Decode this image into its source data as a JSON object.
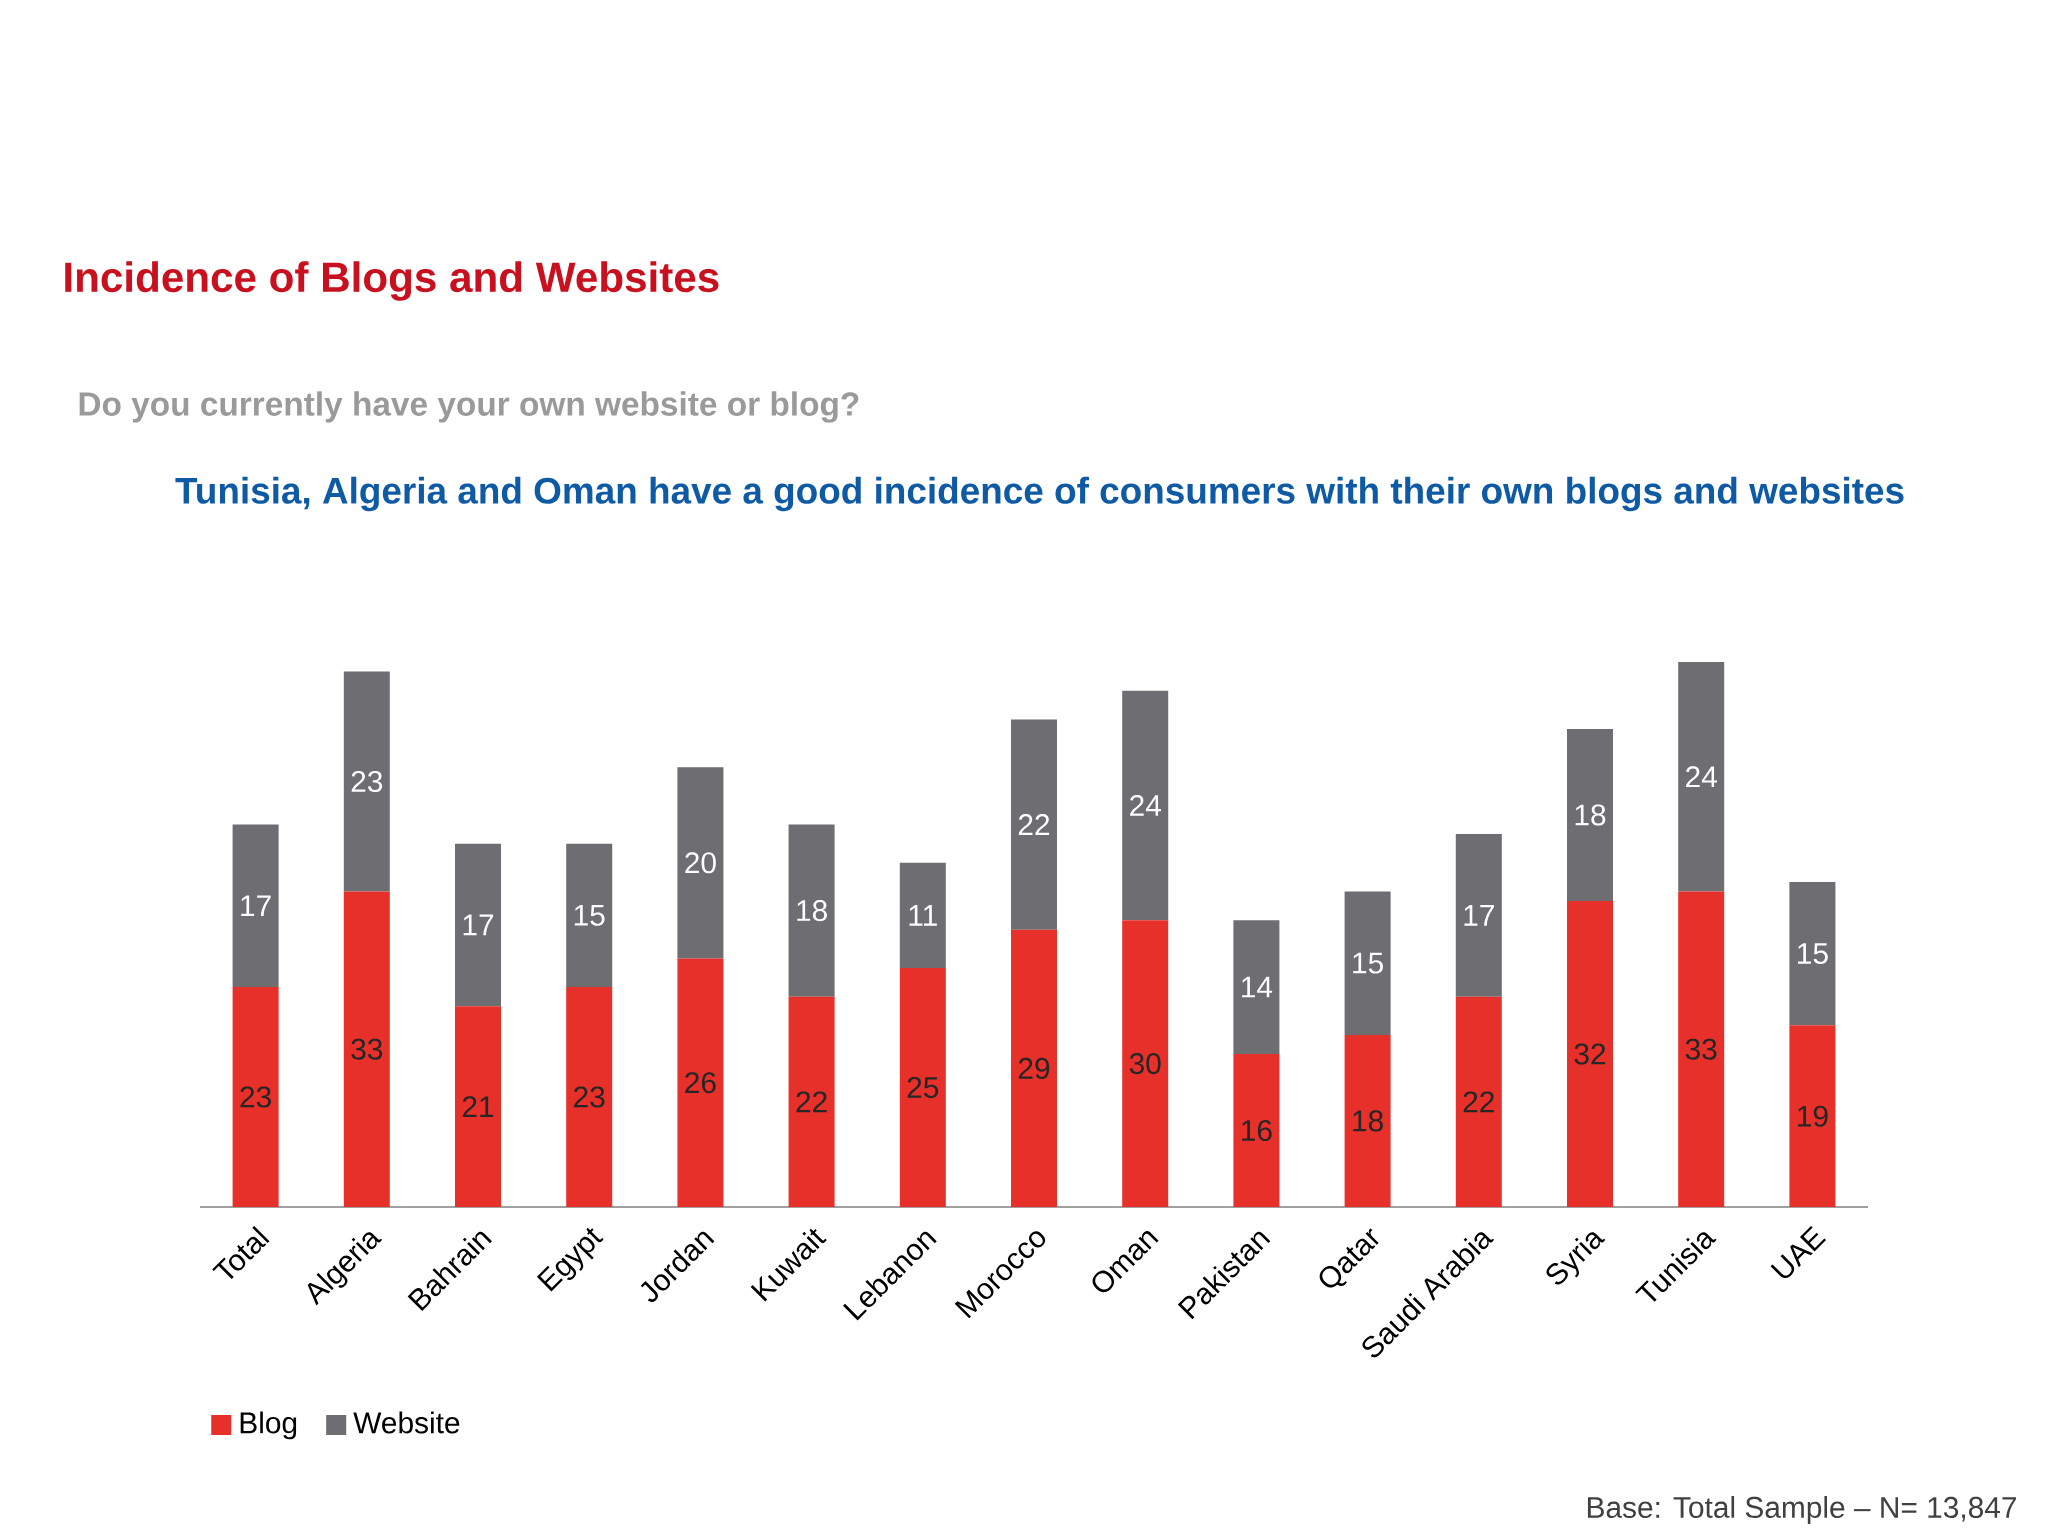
{
  "chart_data": {
    "type": "bar",
    "title": "Incidence of Blogs and Websites",
    "subtitle": "Do you currently have your own website or blog?",
    "annotations": [
      "Tunisia, Algeria and Oman have a good incidence of consumers with their own blogs and websites",
      "Base: Total Sample – N= 13,847"
    ],
    "categories": [
      "Total",
      "Algeria",
      "Bahrain",
      "Egypt",
      "Jordan",
      "Kuwait",
      "Lebanon",
      "Morocco",
      "Oman",
      "Pakistan",
      "Qatar",
      "Saudi Arabia",
      "Syria",
      "Tunisia",
      "UAE"
    ],
    "stacked": true,
    "data_labels": true,
    "legend": "bottom left",
    "series": [
      {
        "name": "Blog",
        "color": "#e8302a",
        "values": [
          23,
          33,
          21,
          23,
          26,
          22,
          25,
          29,
          30,
          16,
          18,
          22,
          32,
          33,
          19
        ]
      },
      {
        "name": "Website",
        "color": "#6d6d72",
        "values": [
          17,
          23,
          17,
          15,
          20,
          18,
          11,
          22,
          24,
          14,
          15,
          17,
          18,
          24,
          15
        ]
      }
    ]
  }
}
